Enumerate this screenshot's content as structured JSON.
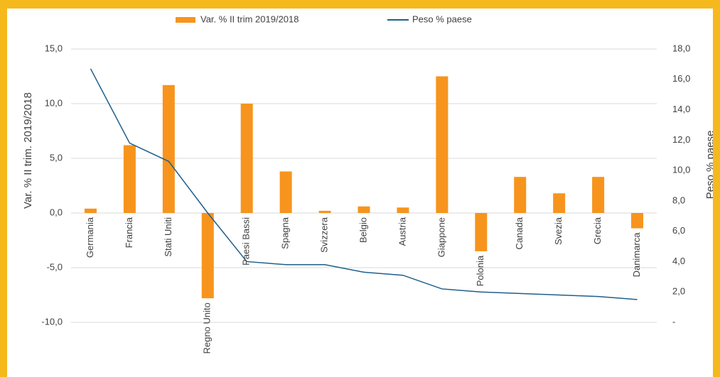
{
  "chart_data": {
    "type": "bar",
    "categories": [
      "Germania",
      "Francia",
      "Stati Uniti",
      "Regno Unito",
      "Paesi Bassi",
      "Spagna",
      "Svizzera",
      "Belgio",
      "Austria",
      "Giappone",
      "Polonia",
      "Canada",
      "Svezia",
      "Grecia",
      "Danimarca"
    ],
    "series": [
      {
        "name": "Var. % II trim 2019/2018",
        "color": "#f7941d",
        "values": [
          0.4,
          6.2,
          11.7,
          -7.8,
          10.0,
          3.8,
          0.2,
          0.6,
          0.5,
          12.5,
          -3.5,
          3.3,
          1.8,
          3.3,
          -1.4
        ]
      },
      {
        "name": "Peso % paese",
        "color": "#1f5f8b",
        "type": "line",
        "axis": "y2",
        "values": [
          16.7,
          11.8,
          10.6,
          7.2,
          4.0,
          3.8,
          3.8,
          3.3,
          3.1,
          2.2,
          2.0,
          1.9,
          1.8,
          1.7,
          1.5
        ]
      }
    ],
    "y_label": "Var. % II trim. 2019/2018",
    "y2_label": "Peso % paese",
    "ylim": [
      -10,
      15
    ],
    "yticks": [
      {
        "value": -10,
        "label": "-10,0"
      },
      {
        "value": -5,
        "label": "-5,0"
      },
      {
        "value": 0,
        "label": "0,0"
      },
      {
        "value": 5,
        "label": "5,0"
      },
      {
        "value": 10,
        "label": "10,0"
      },
      {
        "value": 15,
        "label": "15,0"
      }
    ],
    "y2lim": [
      0,
      18
    ],
    "y2ticks": [
      {
        "value": 0,
        "label": "-"
      },
      {
        "value": 2,
        "label": "2,0"
      },
      {
        "value": 4,
        "label": "4,0"
      },
      {
        "value": 6,
        "label": "6,0"
      },
      {
        "value": 8,
        "label": "8,0"
      },
      {
        "value": 10,
        "label": "10,0"
      },
      {
        "value": 12,
        "label": "12,0"
      },
      {
        "value": 14,
        "label": "14,0"
      },
      {
        "value": 16,
        "label": "16,0"
      },
      {
        "value": 18,
        "label": "18,0"
      }
    ],
    "grid": true,
    "legend": "top"
  }
}
